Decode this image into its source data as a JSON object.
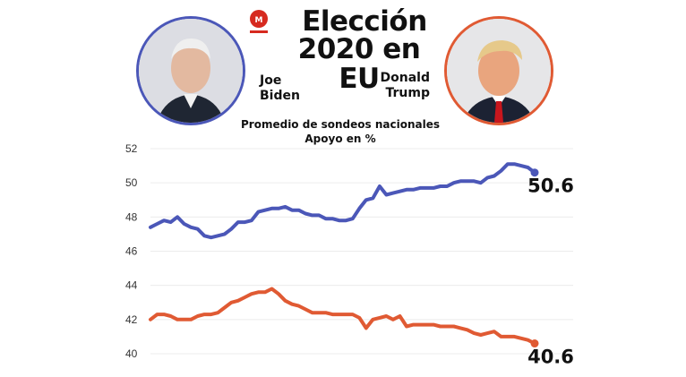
{
  "title_line1": "Elección",
  "title_line2": "2020 en EU",
  "candidates": {
    "biden": {
      "name_line1": "Joe",
      "name_line2": "Biden",
      "color": "#4b57b8"
    },
    "trump": {
      "name_line1": "Donald",
      "name_line2": "Trump",
      "color": "#e05a33"
    }
  },
  "subtitle_line1": "Promedio de sondeos nacionales",
  "subtitle_line2": "Apoyo en %",
  "chart_data": {
    "type": "line",
    "ylim": [
      40,
      52
    ],
    "yticks": [
      40,
      42,
      44,
      46,
      48,
      50,
      52
    ],
    "series": [
      {
        "name": "Joe Biden",
        "color": "#4b57b8",
        "end_label": "50.6",
        "values": [
          47.4,
          47.6,
          47.8,
          47.7,
          48.0,
          47.6,
          47.4,
          47.3,
          46.9,
          46.8,
          46.9,
          47.0,
          47.3,
          47.7,
          47.7,
          47.8,
          48.3,
          48.4,
          48.5,
          48.5,
          48.6,
          48.4,
          48.4,
          48.2,
          48.1,
          48.1,
          47.9,
          47.9,
          47.8,
          47.8,
          47.9,
          48.5,
          49.0,
          49.1,
          49.8,
          49.3,
          49.4,
          49.5,
          49.6,
          49.6,
          49.7,
          49.7,
          49.7,
          49.8,
          49.8,
          50.0,
          50.1,
          50.1,
          50.1,
          50.0,
          50.3,
          50.4,
          50.7,
          51.1,
          51.1,
          51.0,
          50.9,
          50.6
        ]
      },
      {
        "name": "Donald Trump",
        "color": "#e05a33",
        "end_label": "40.6",
        "values": [
          42.0,
          42.3,
          42.3,
          42.2,
          42.0,
          42.0,
          42.0,
          42.2,
          42.3,
          42.3,
          42.4,
          42.7,
          43.0,
          43.1,
          43.3,
          43.5,
          43.6,
          43.6,
          43.8,
          43.5,
          43.1,
          42.9,
          42.8,
          42.6,
          42.4,
          42.4,
          42.4,
          42.3,
          42.3,
          42.3,
          42.3,
          42.1,
          41.5,
          42.0,
          42.1,
          42.2,
          42.0,
          42.2,
          41.6,
          41.7,
          41.7,
          41.7,
          41.7,
          41.6,
          41.6,
          41.6,
          41.5,
          41.4,
          41.2,
          41.1,
          41.2,
          41.3,
          41.0,
          41.0,
          41.0,
          40.9,
          40.8,
          40.6
        ]
      }
    ]
  }
}
